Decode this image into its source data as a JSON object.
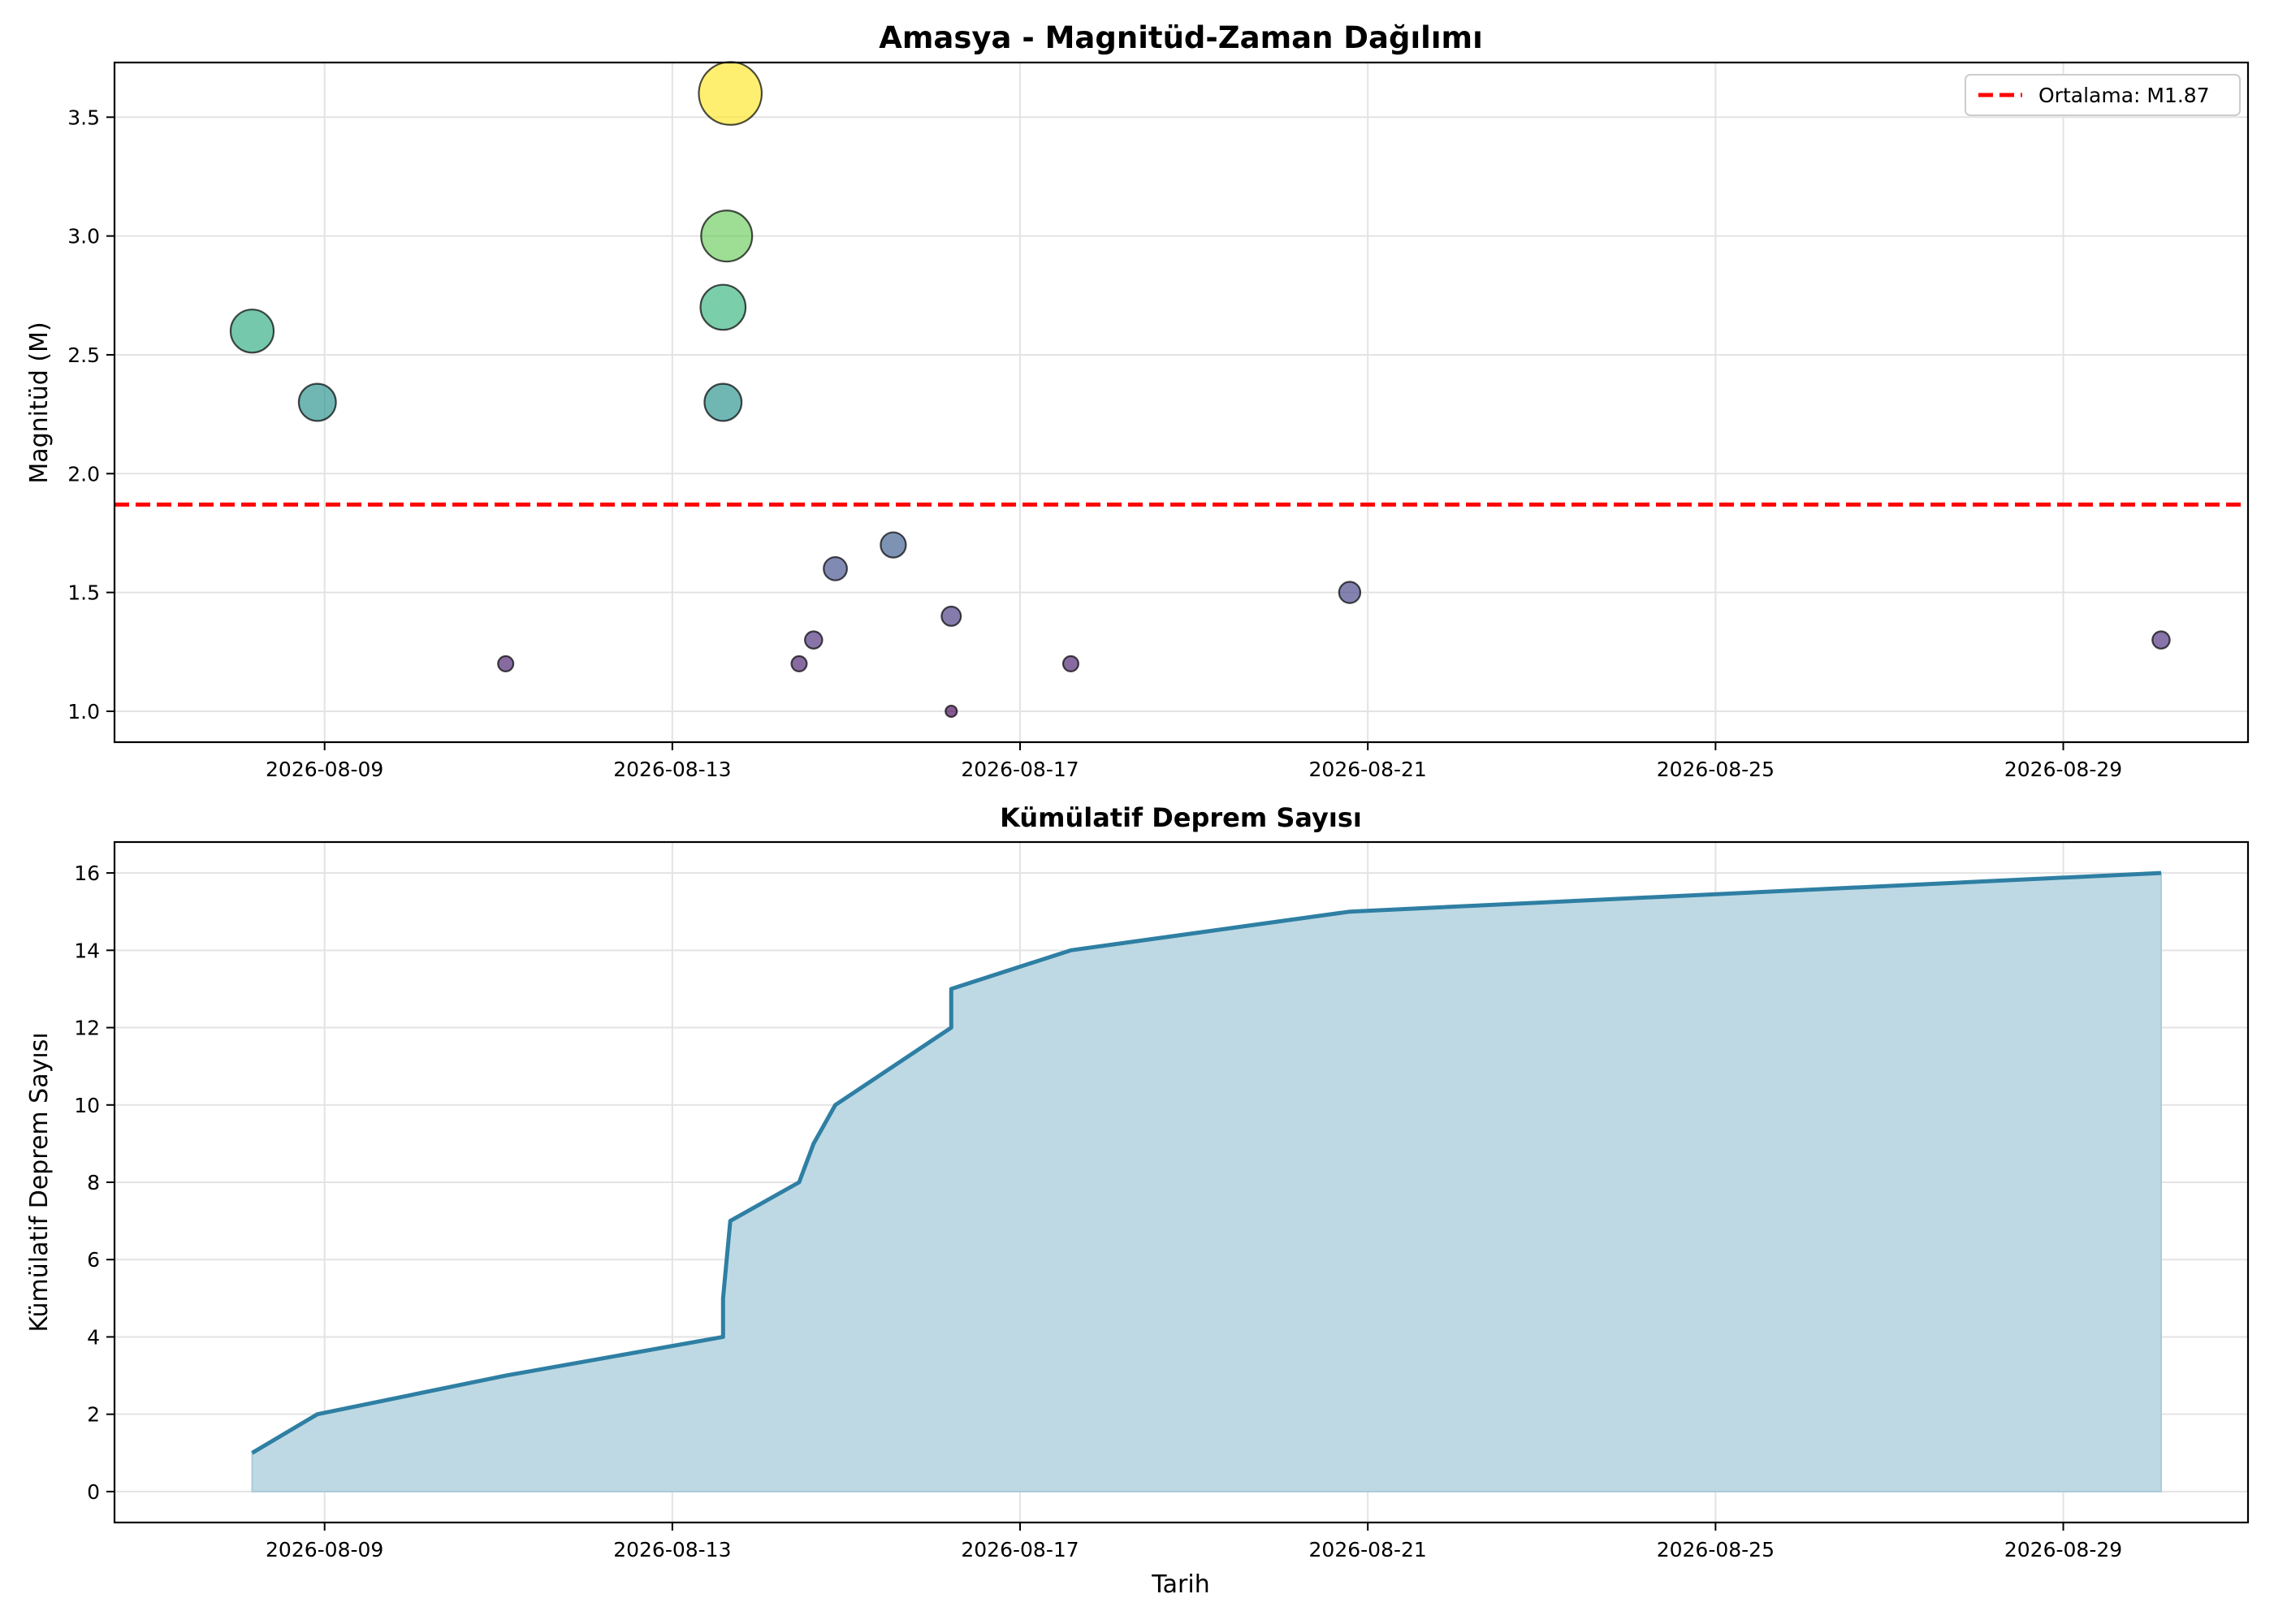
{
  "chart_data": [
    {
      "type": "scatter",
      "title": "Amasya - Magnitüd-Zaman Dağılımı",
      "xlabel": "",
      "ylabel": "Magnitüd (M)",
      "xlim": [
        "2026-08-06T14:00",
        "2026-08-31T03:00"
      ],
      "ylim": [
        0.87,
        3.73
      ],
      "xticks": [
        "2026-08-09",
        "2026-08-13",
        "2026-08-17",
        "2026-08-21",
        "2026-08-25",
        "2026-08-29"
      ],
      "yticks": [
        "1.0",
        "1.5",
        "2.0",
        "2.5",
        "3.0",
        "3.5"
      ],
      "grid": true,
      "legend_position": "top-right",
      "colormap": "viridis",
      "points": [
        {
          "t": "2026-08-08T04:00",
          "m": 2.6
        },
        {
          "t": "2026-08-08T22:00",
          "m": 2.3
        },
        {
          "t": "2026-08-11T02:00",
          "m": 1.2
        },
        {
          "t": "2026-08-13T14:00",
          "m": 2.7
        },
        {
          "t": "2026-08-13T14:00",
          "m": 2.3
        },
        {
          "t": "2026-08-13T15:00",
          "m": 3.0
        },
        {
          "t": "2026-08-13T16:00",
          "m": 3.6
        },
        {
          "t": "2026-08-14T11:00",
          "m": 1.2
        },
        {
          "t": "2026-08-14T15:00",
          "m": 1.3
        },
        {
          "t": "2026-08-14T21:00",
          "m": 1.6
        },
        {
          "t": "2026-08-15T13:00",
          "m": 1.7
        },
        {
          "t": "2026-08-16T05:00",
          "m": 1.0
        },
        {
          "t": "2026-08-16T05:00",
          "m": 1.4
        },
        {
          "t": "2026-08-17T14:00",
          "m": 1.2
        },
        {
          "t": "2026-08-20T19:00",
          "m": 1.5
        },
        {
          "t": "2026-08-30T03:00",
          "m": 1.3
        }
      ],
      "mean_line": {
        "value": 1.87,
        "label": "Ortalama: M1.87",
        "color": "#ff0000"
      }
    },
    {
      "type": "area",
      "title": "Kümülatif Deprem Sayısı",
      "xlabel": "Tarih",
      "ylabel": "Kümülatif Deprem Sayısı",
      "xlim": [
        "2026-08-06T14:00",
        "2026-08-31T03:00"
      ],
      "ylim": [
        -0.8,
        16.8
      ],
      "xticks": [
        "2026-08-09",
        "2026-08-13",
        "2026-08-17",
        "2026-08-21",
        "2026-08-25",
        "2026-08-29"
      ],
      "yticks": [
        "0",
        "2",
        "4",
        "6",
        "8",
        "10",
        "12",
        "14",
        "16"
      ],
      "grid": true,
      "line_color": "#2e7fa3",
      "fill_color": "#bed9e4",
      "x": [
        "2026-08-08T04:00",
        "2026-08-08T22:00",
        "2026-08-11T02:00",
        "2026-08-13T14:00",
        "2026-08-13T14:00",
        "2026-08-13T15:00",
        "2026-08-13T16:00",
        "2026-08-14T11:00",
        "2026-08-14T15:00",
        "2026-08-14T21:00",
        "2026-08-15T13:00",
        "2026-08-16T05:00",
        "2026-08-16T05:00",
        "2026-08-17T14:00",
        "2026-08-20T19:00",
        "2026-08-30T03:00"
      ],
      "y": [
        1,
        2,
        3,
        4,
        5,
        6,
        7,
        8,
        9,
        10,
        11,
        12,
        13,
        14,
        15,
        16
      ]
    }
  ]
}
